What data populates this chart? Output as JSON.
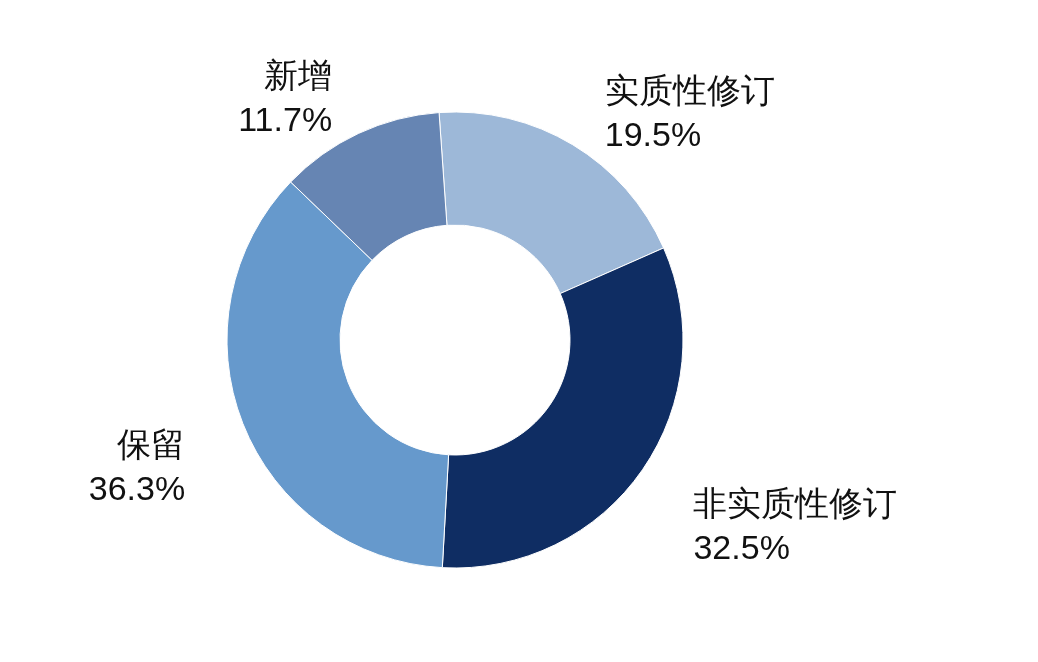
{
  "chart_data": {
    "type": "donut",
    "categories": [
      "实质性修订",
      "非实质性修订",
      "保留",
      "新增"
    ],
    "values": [
      19.5,
      32.5,
      36.3,
      11.7
    ],
    "value_labels": [
      "19.5%",
      "32.5%",
      "36.3%",
      "11.7%"
    ],
    "colors": [
      "#9db8d8",
      "#0f2d63",
      "#6699cc",
      "#6685b3"
    ]
  }
}
